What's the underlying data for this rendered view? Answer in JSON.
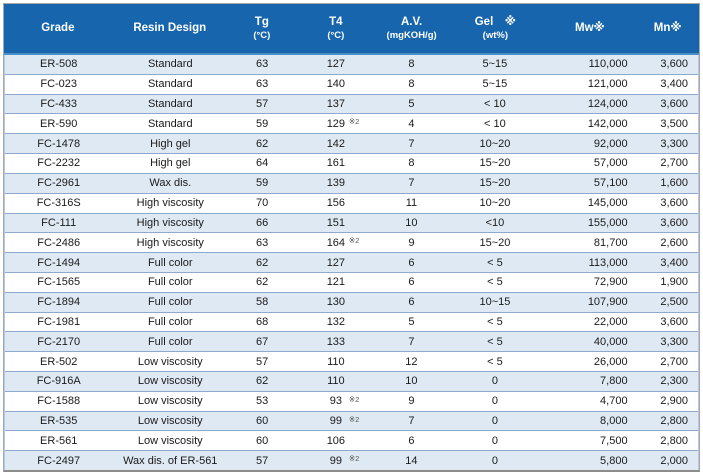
{
  "colors": {
    "header_bg": "#1765ad",
    "header_text": "#ffffff",
    "row_alt_bg": "#dfe9f4",
    "row_white_bg": "#ffffff",
    "row_divider": "#8fa9ce",
    "header_divider": "#4a8fc7",
    "outer_border": "#a8a8a8",
    "body_text": "#1a1a1a"
  },
  "table": {
    "note_mark": "※2",
    "columns": [
      {
        "key": "grade",
        "label": "Grade",
        "sub": "",
        "align": "center"
      },
      {
        "key": "resin",
        "label": "Resin Design",
        "sub": "",
        "align": "center"
      },
      {
        "key": "tg",
        "label": "Tg",
        "sub": "(°C)",
        "align": "center"
      },
      {
        "key": "t4",
        "label": "T4",
        "sub": "(°C)",
        "align": "center"
      },
      {
        "key": "av",
        "label": "A.V.",
        "sub": "(mgKOH/g)",
        "align": "center"
      },
      {
        "key": "gel",
        "label": "Gel　※",
        "sub": "(wt%)",
        "align": "center"
      },
      {
        "key": "mw",
        "label": "Mw※",
        "sub": "",
        "align": "right"
      },
      {
        "key": "mn",
        "label": "Mn※",
        "sub": "",
        "align": "right"
      }
    ],
    "rows": [
      {
        "grade": "ER-508",
        "resin": "Standard",
        "tg": "63",
        "t4": "127",
        "t4_note": "",
        "av": "8",
        "gel": "5~15",
        "mw": "110,000",
        "mn": "3,600"
      },
      {
        "grade": "FC-023",
        "resin": "Standard",
        "tg": "63",
        "t4": "140",
        "t4_note": "",
        "av": "8",
        "gel": "5~15",
        "mw": "121,000",
        "mn": "3,400"
      },
      {
        "grade": "FC-433",
        "resin": "Standard",
        "tg": "57",
        "t4": "137",
        "t4_note": "",
        "av": "5",
        "gel": "< 10",
        "mw": "124,000",
        "mn": "3,600"
      },
      {
        "grade": "ER-590",
        "resin": "Standard",
        "tg": "59",
        "t4": "129",
        "t4_note": "※2",
        "av": "4",
        "gel": "< 10",
        "mw": "142,000",
        "mn": "3,500"
      },
      {
        "grade": "FC-1478",
        "resin": "High gel",
        "tg": "62",
        "t4": "142",
        "t4_note": "",
        "av": "7",
        "gel": "10~20",
        "mw": "92,000",
        "mn": "3,300"
      },
      {
        "grade": "FC-2232",
        "resin": "High gel",
        "tg": "64",
        "t4": "161",
        "t4_note": "",
        "av": "8",
        "gel": "15~20",
        "mw": "57,000",
        "mn": "2,700"
      },
      {
        "grade": "FC-2961",
        "resin": "Wax dis.",
        "tg": "59",
        "t4": "139",
        "t4_note": "",
        "av": "7",
        "gel": "15~20",
        "mw": "57,100",
        "mn": "1,600"
      },
      {
        "grade": "FC-316S",
        "resin": "High viscosity",
        "tg": "70",
        "t4": "156",
        "t4_note": "",
        "av": "11",
        "gel": "10~20",
        "mw": "145,000",
        "mn": "3,600"
      },
      {
        "grade": "FC-111",
        "resin": "High viscosity",
        "tg": "66",
        "t4": "151",
        "t4_note": "",
        "av": "10",
        "gel": "<10",
        "mw": "155,000",
        "mn": "3,600"
      },
      {
        "grade": "FC-2486",
        "resin": "High viscosity",
        "tg": "63",
        "t4": "164",
        "t4_note": "※2",
        "av": "9",
        "gel": "15~20",
        "mw": "81,700",
        "mn": "2,600"
      },
      {
        "grade": "FC-1494",
        "resin": "Full color",
        "tg": "62",
        "t4": "127",
        "t4_note": "",
        "av": "6",
        "gel": "< 5",
        "mw": "113,000",
        "mn": "3,400"
      },
      {
        "grade": "FC-1565",
        "resin": "Full color",
        "tg": "62",
        "t4": "121",
        "t4_note": "",
        "av": "6",
        "gel": "< 5",
        "mw": "72,900",
        "mn": "1,900"
      },
      {
        "grade": "FC-1894",
        "resin": "Full color",
        "tg": "58",
        "t4": "130",
        "t4_note": "",
        "av": "6",
        "gel": "10~15",
        "mw": "107,900",
        "mn": "2,500"
      },
      {
        "grade": "FC-1981",
        "resin": "Full color",
        "tg": "68",
        "t4": "132",
        "t4_note": "",
        "av": "5",
        "gel": "< 5",
        "mw": "22,000",
        "mn": "3,600"
      },
      {
        "grade": "FC-2170",
        "resin": "Full color",
        "tg": "67",
        "t4": "133",
        "t4_note": "",
        "av": "7",
        "gel": "< 5",
        "mw": "40,000",
        "mn": "3,300"
      },
      {
        "grade": "ER-502",
        "resin": "Low viscosity",
        "tg": "57",
        "t4": "110",
        "t4_note": "",
        "av": "12",
        "gel": "< 5",
        "mw": "26,000",
        "mn": "2,700"
      },
      {
        "grade": "FC-916A",
        "resin": "Low viscosity",
        "tg": "62",
        "t4": "110",
        "t4_note": "",
        "av": "10",
        "gel": "0",
        "mw": "7,800",
        "mn": "2,300"
      },
      {
        "grade": "FC-1588",
        "resin": "Low viscosity",
        "tg": "53",
        "t4": "93",
        "t4_note": "※2",
        "av": "9",
        "gel": "0",
        "mw": "4,700",
        "mn": "2,900"
      },
      {
        "grade": "ER-535",
        "resin": "Low viscosity",
        "tg": "60",
        "t4": "99",
        "t4_note": "※2",
        "av": "7",
        "gel": "0",
        "mw": "8,000",
        "mn": "2,800"
      },
      {
        "grade": "ER-561",
        "resin": "Low viscosity",
        "tg": "60",
        "t4": "106",
        "t4_note": "",
        "av": "6",
        "gel": "0",
        "mw": "7,500",
        "mn": "2,800"
      },
      {
        "grade": "FC-2497",
        "resin": "Wax dis. of ER-561",
        "tg": "57",
        "t4": "99",
        "t4_note": "※2",
        "av": "14",
        "gel": "0",
        "mw": "5,800",
        "mn": "2,000"
      }
    ]
  }
}
